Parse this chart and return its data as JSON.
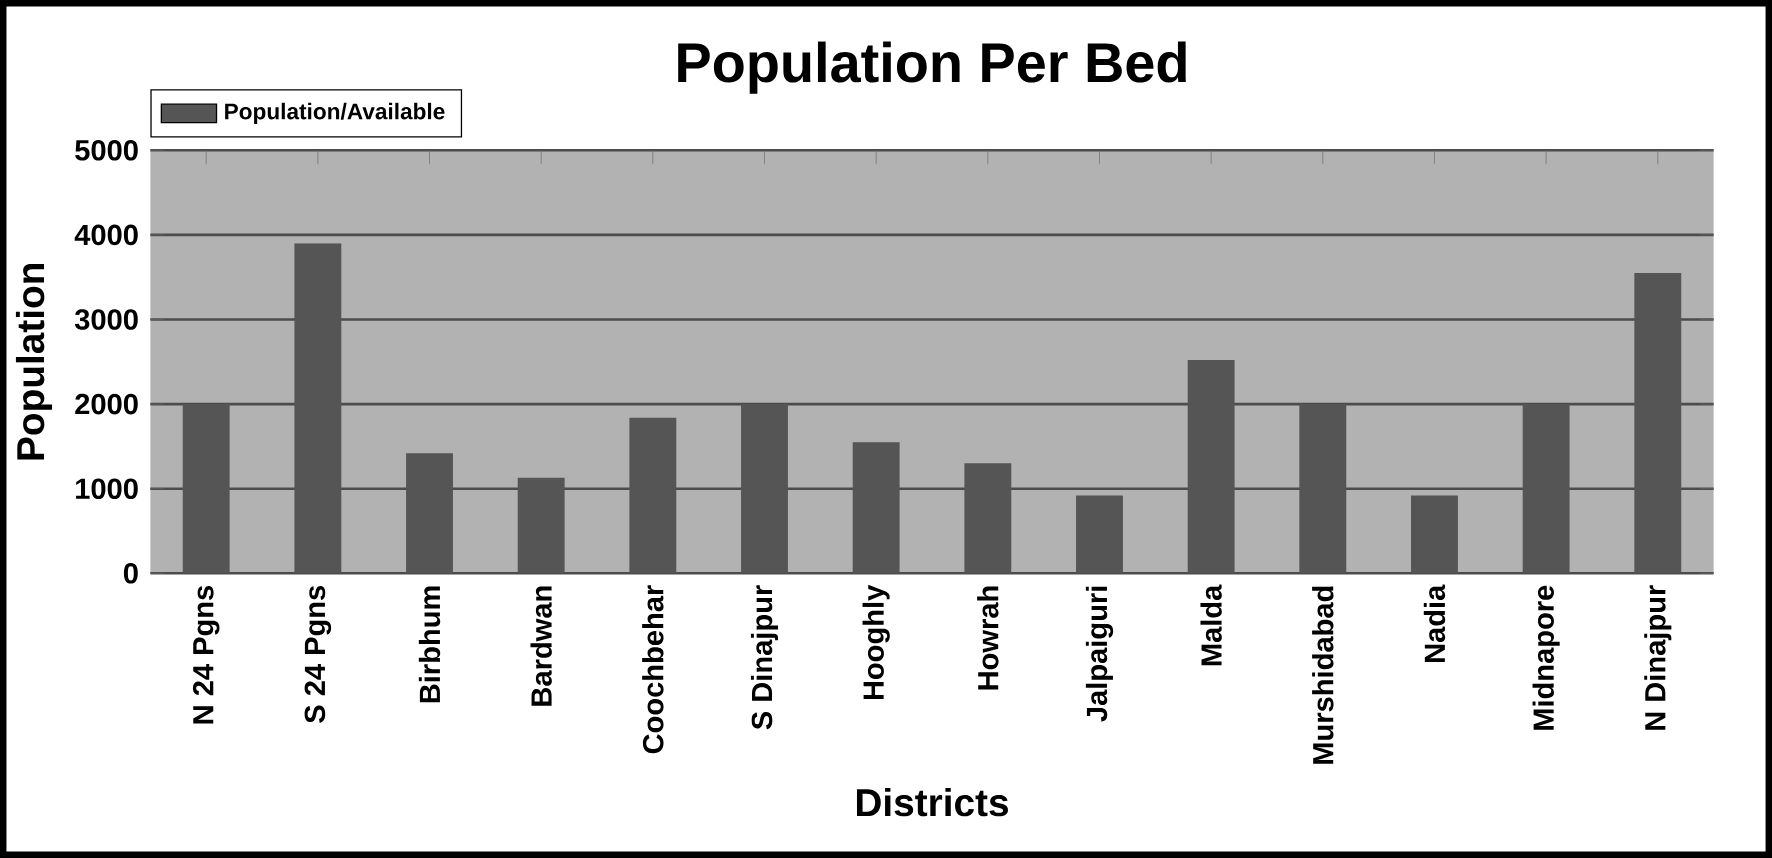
{
  "chart_data": {
    "type": "bar",
    "title": "Population Per Bed",
    "xlabel": "Districts",
    "ylabel": "Population",
    "categories": [
      "N 24 Pgns",
      "S 24 Pgns",
      "Birbhum",
      "Bardwan",
      "Coochbehar",
      "S Dinajpur",
      "Hooghly",
      "Howrah",
      "Jalpaiguri",
      "Malda",
      "Murshidabad",
      "Nadia",
      "Midnapore",
      "N Dinajpur"
    ],
    "series": [
      {
        "name": "Population/Available",
        "color": "#555555",
        "values": [
          2000,
          3900,
          1420,
          1130,
          1840,
          2000,
          1550,
          1300,
          920,
          2520,
          2000,
          920,
          2000,
          3550
        ]
      }
    ],
    "ylim": [
      0,
      5000
    ],
    "yticks": [
      0,
      1000,
      2000,
      3000,
      4000,
      5000
    ],
    "grid": "y",
    "legend": "top left"
  }
}
